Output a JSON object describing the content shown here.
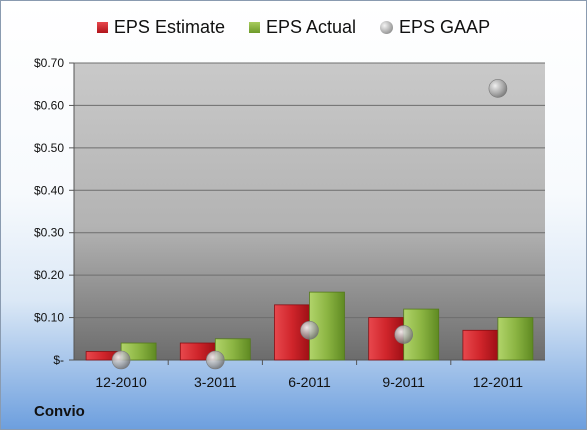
{
  "company": "Convio",
  "chart_data": {
    "type": "bar",
    "categories": [
      "12-2010",
      "3-2011",
      "6-2011",
      "9-2011",
      "12-2011"
    ],
    "series": [
      {
        "name": "EPS Estimate",
        "type": "bar",
        "color": "#c0161d",
        "values": [
          0.02,
          0.04,
          0.13,
          0.1,
          0.07
        ]
      },
      {
        "name": "EPS Actual",
        "type": "bar",
        "color": "#7ea83a",
        "values": [
          0.04,
          0.05,
          0.16,
          0.12,
          0.1
        ]
      },
      {
        "name": "EPS GAAP",
        "type": "scatter",
        "color": "#a0a0a0",
        "values": [
          0.0,
          0.0,
          0.07,
          0.06,
          0.64
        ]
      }
    ],
    "yticks": [
      "$-",
      "$0.10",
      "$0.20",
      "$0.30",
      "$0.40",
      "$0.50",
      "$0.60",
      "$0.70"
    ],
    "ylim": [
      0,
      0.7
    ],
    "legend": "top",
    "grid": true
  }
}
